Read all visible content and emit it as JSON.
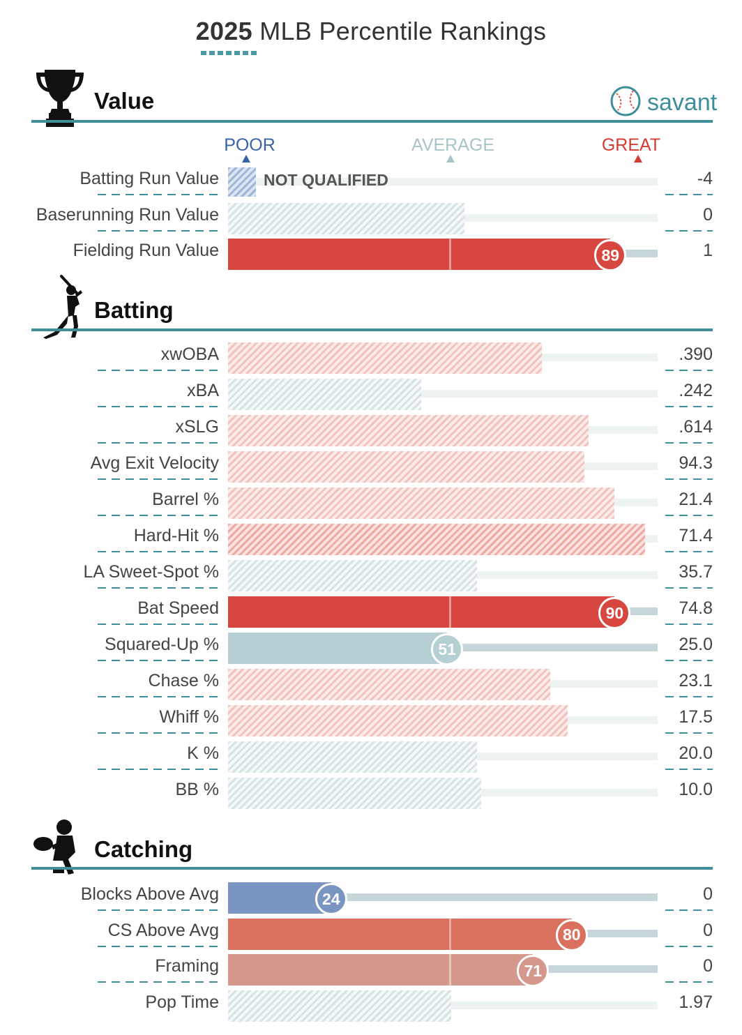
{
  "title": {
    "year": "2025",
    "rest": "MLB Percentile Rankings"
  },
  "brand": {
    "name": "savant"
  },
  "scale": {
    "poor": "POOR",
    "average": "AVERAGE",
    "great": "GREAT",
    "poor_color": "#3a62a8",
    "average_color": "#a8c4c8",
    "great_color": "#d43a32"
  },
  "sections": {
    "value": {
      "title": "Value"
    },
    "batting": {
      "title": "Batting"
    },
    "catching": {
      "title": "Catching"
    }
  },
  "not_qualified_label": "NOT QUALIFIED",
  "rows": {
    "value": [
      {
        "label": "Batting Run Value",
        "value": "-4",
        "percentile": null,
        "qualified": false
      },
      {
        "label": "Baserunning Run Value",
        "value": "0",
        "percentile": 55,
        "qualified": false
      },
      {
        "label": "Fielding Run Value",
        "value": "1",
        "percentile": 89,
        "qualified": true,
        "color": "#d8473f"
      }
    ],
    "batting": [
      {
        "label": "xwOBA",
        "value": ".390",
        "percentile": 73,
        "qualified": false
      },
      {
        "label": "xBA",
        "value": ".242",
        "percentile": 45,
        "qualified": false
      },
      {
        "label": "xSLG",
        "value": ".614",
        "percentile": 84,
        "qualified": false
      },
      {
        "label": "Avg Exit Velocity",
        "value": "94.3",
        "percentile": 83,
        "qualified": false
      },
      {
        "label": "Barrel %",
        "value": "21.4",
        "percentile": 90,
        "qualified": false
      },
      {
        "label": "Hard-Hit %",
        "value": "71.4",
        "percentile": 97,
        "qualified": false
      },
      {
        "label": "LA Sweet-Spot %",
        "value": "35.7",
        "percentile": 58,
        "qualified": false
      },
      {
        "label": "Bat Speed",
        "value": "74.8",
        "percentile": 90,
        "qualified": true,
        "color": "#d8473f"
      },
      {
        "label": "Squared-Up %",
        "value": "25.0",
        "percentile": 51,
        "qualified": true,
        "color": "#b5cfd2"
      },
      {
        "label": "Chase %",
        "value": "23.1",
        "percentile": 75,
        "qualified": false
      },
      {
        "label": "Whiff %",
        "value": "17.5",
        "percentile": 79,
        "qualified": false
      },
      {
        "label": "K %",
        "value": "20.0",
        "percentile": 58,
        "qualified": false
      },
      {
        "label": "BB %",
        "value": "10.0",
        "percentile": 59,
        "qualified": false
      }
    ],
    "catching": [
      {
        "label": "Blocks Above Avg",
        "value": "0",
        "percentile": 24,
        "qualified": true,
        "color": "#7a95c2"
      },
      {
        "label": "CS Above Avg",
        "value": "0",
        "percentile": 80,
        "qualified": true,
        "color": "#d97060"
      },
      {
        "label": "Framing",
        "value": "0",
        "percentile": 71,
        "qualified": true,
        "color": "#d4988c"
      },
      {
        "label": "Pop Time",
        "value": "1.97",
        "percentile": 52,
        "qualified": false
      }
    ]
  }
}
